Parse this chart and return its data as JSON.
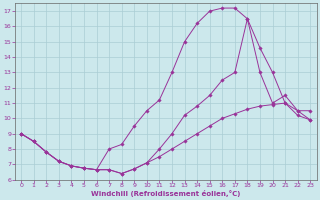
{
  "xlabel": "Windchill (Refroidissement éolien,°C)",
  "background_color": "#cce8ec",
  "grid_color": "#aacdd4",
  "line_color": "#993399",
  "xlim": [
    -0.5,
    23.5
  ],
  "ylim": [
    6,
    17.5
  ],
  "xticks": [
    0,
    1,
    2,
    3,
    4,
    5,
    6,
    7,
    8,
    9,
    10,
    11,
    12,
    13,
    14,
    15,
    16,
    17,
    18,
    19,
    20,
    21,
    22,
    23
  ],
  "yticks": [
    6,
    7,
    8,
    9,
    10,
    11,
    12,
    13,
    14,
    15,
    16,
    17
  ],
  "curve1_x": [
    0,
    1,
    2,
    3,
    4,
    5,
    6,
    7,
    8,
    9,
    10,
    11,
    12,
    13,
    14,
    15,
    16,
    17,
    18,
    19,
    20,
    21,
    22,
    23
  ],
  "curve1_y": [
    9.0,
    8.5,
    7.8,
    7.2,
    6.9,
    6.75,
    6.65,
    6.65,
    6.4,
    6.7,
    7.1,
    7.5,
    8.0,
    8.5,
    9.0,
    9.5,
    10.0,
    10.3,
    10.6,
    10.8,
    10.9,
    11.0,
    10.2,
    9.9
  ],
  "curve2_x": [
    0,
    1,
    2,
    3,
    4,
    5,
    6,
    7,
    8,
    9,
    10,
    11,
    12,
    13,
    14,
    15,
    16,
    17,
    18,
    19,
    20,
    21,
    22,
    23
  ],
  "curve2_y": [
    9.0,
    8.5,
    7.8,
    7.2,
    6.9,
    6.75,
    6.65,
    8.0,
    8.3,
    9.5,
    10.5,
    11.2,
    13.0,
    15.0,
    16.2,
    17.0,
    17.2,
    17.2,
    16.5,
    14.6,
    13.0,
    11.0,
    10.5,
    9.9
  ],
  "curve3_x": [
    0,
    1,
    2,
    3,
    4,
    5,
    6,
    7,
    8,
    9,
    10,
    11,
    12,
    13,
    14,
    15,
    16,
    17,
    18,
    19,
    20,
    21,
    22,
    23
  ],
  "curve3_y": [
    9.0,
    8.5,
    7.8,
    7.2,
    6.9,
    6.75,
    6.65,
    6.65,
    6.4,
    6.7,
    7.1,
    8.0,
    9.0,
    10.2,
    10.8,
    11.5,
    12.5,
    13.0,
    16.5,
    13.0,
    11.0,
    11.5,
    10.5,
    10.5
  ]
}
